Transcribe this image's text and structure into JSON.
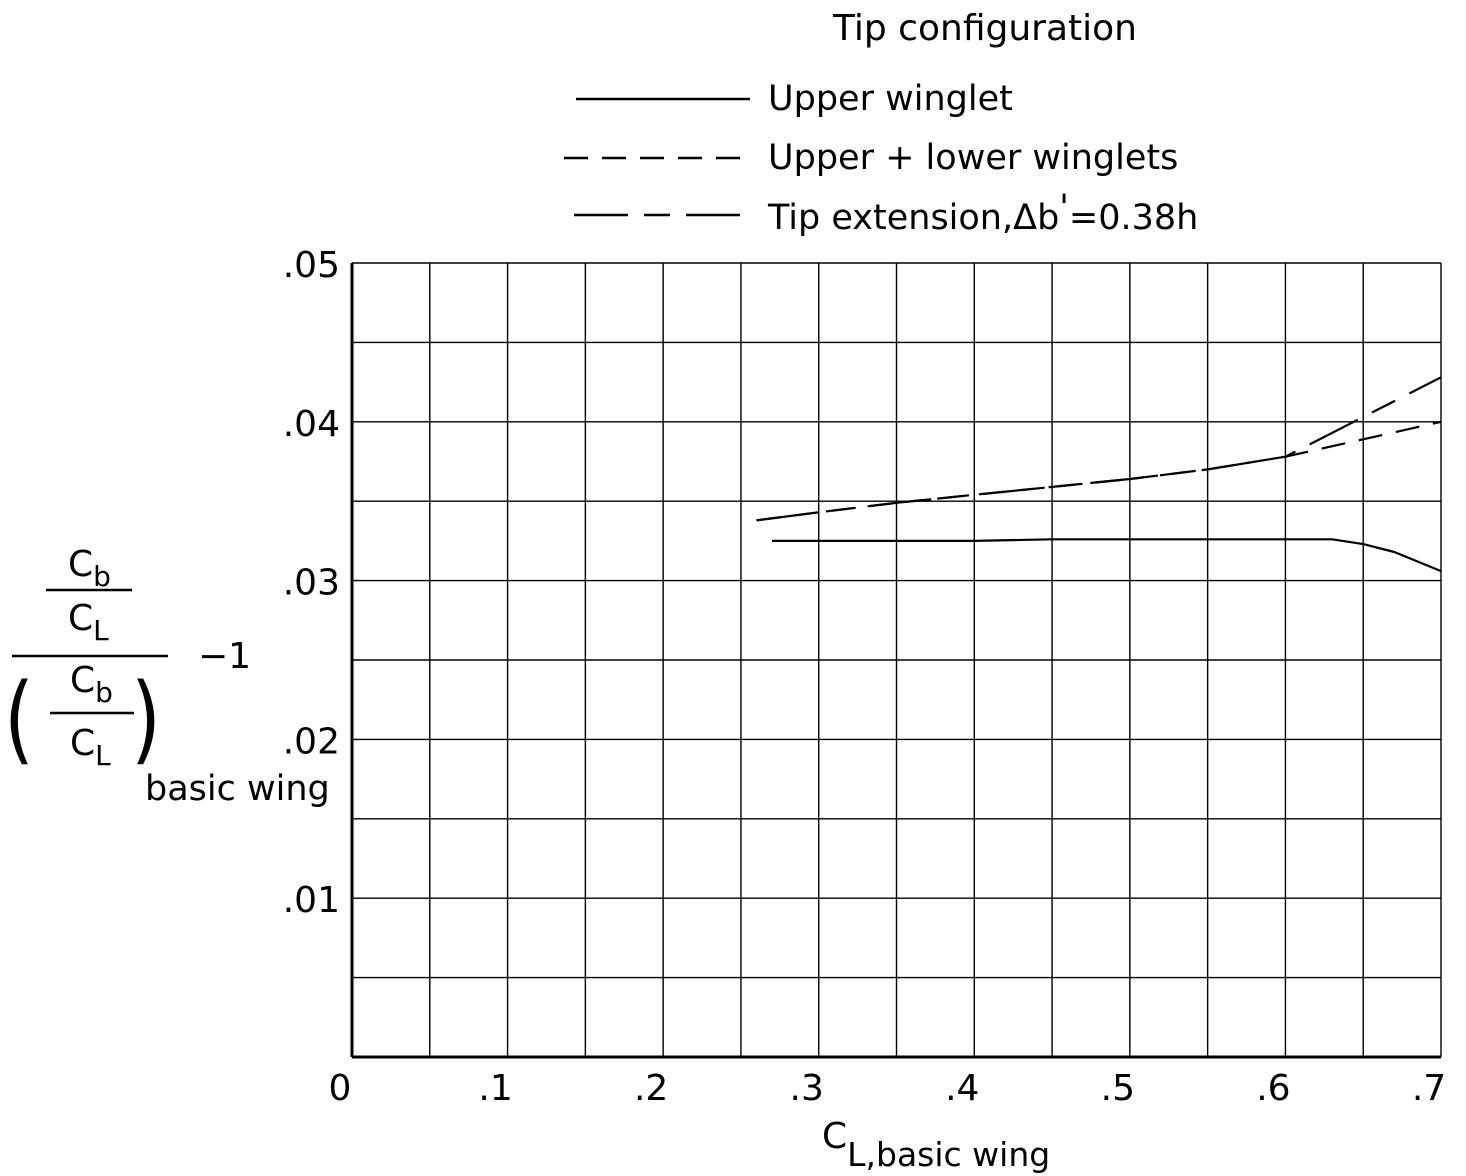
{
  "chart_data": {
    "type": "line",
    "legend": {
      "title": "Tip configuration",
      "placement": "top-center"
    },
    "series": [
      {
        "name": "Upper winglet",
        "style": "solid",
        "x": [
          0.27,
          0.3,
          0.35,
          0.4,
          0.45,
          0.5,
          0.55,
          0.6,
          0.63,
          0.65,
          0.67,
          0.7
        ],
        "y": [
          0.0325,
          0.0325,
          0.0325,
          0.0325,
          0.0326,
          0.0326,
          0.0326,
          0.0326,
          0.0326,
          0.0323,
          0.0318,
          0.0306
        ]
      },
      {
        "name": "Upper + lower winglets",
        "style": "short-dash",
        "x": [
          0.26,
          0.3,
          0.35,
          0.4,
          0.45,
          0.5,
          0.55,
          0.6,
          0.65,
          0.7
        ],
        "y": [
          0.0338,
          0.0343,
          0.0349,
          0.0354,
          0.0359,
          0.0364,
          0.037,
          0.0378,
          0.0389,
          0.04
        ]
      },
      {
        "name": "Tip extension, Δb'=0.38h",
        "name_parts": {
          "main": "Tip  extension,",
          "delta": "Δ",
          "b": "b",
          "prime": "'",
          "rest": "=0.38h"
        },
        "style": "long-dash",
        "x": [
          0.26,
          0.3,
          0.35,
          0.4,
          0.45,
          0.5,
          0.55,
          0.6,
          0.62,
          0.65,
          0.7
        ],
        "y": [
          0.0338,
          0.0343,
          0.0349,
          0.0354,
          0.0359,
          0.0364,
          0.037,
          0.0378,
          0.0388,
          0.0403,
          0.0428
        ]
      }
    ],
    "xlim": [
      0,
      0.7
    ],
    "ylim": [
      0,
      0.05
    ],
    "x_ticks": [
      {
        "value": 0,
        "label": "0"
      },
      {
        "value": 0.1,
        "label": ".1"
      },
      {
        "value": 0.2,
        "label": ".2"
      },
      {
        "value": 0.3,
        "label": ".3"
      },
      {
        "value": 0.4,
        "label": ".4"
      },
      {
        "value": 0.5,
        "label": ".5"
      },
      {
        "value": 0.6,
        "label": ".6"
      },
      {
        "value": 0.7,
        "label": ".7"
      }
    ],
    "y_ticks": [
      {
        "value": 0.01,
        "label": ".01"
      },
      {
        "value": 0.02,
        "label": ".02"
      },
      {
        "value": 0.03,
        "label": ".03"
      },
      {
        "value": 0.04,
        "label": ".04"
      },
      {
        "value": 0.05,
        "label": ".05"
      }
    ],
    "grid": true,
    "grid_step_x": 0.05,
    "grid_step_y": 0.005,
    "xlabel": {
      "main": "C",
      "sub": "L,basic wing"
    },
    "ylabel": {
      "num_top": "C",
      "num_top_sub": "b",
      "num_bottom": "C",
      "num_bottom_sub": "L",
      "den_top": "C",
      "den_top_sub": "b",
      "den_bottom": "C",
      "den_bottom_sub": "L",
      "minus_one": "−1",
      "basic": "basic  wing",
      "paren_open": "(",
      "paren_close": ")"
    }
  }
}
